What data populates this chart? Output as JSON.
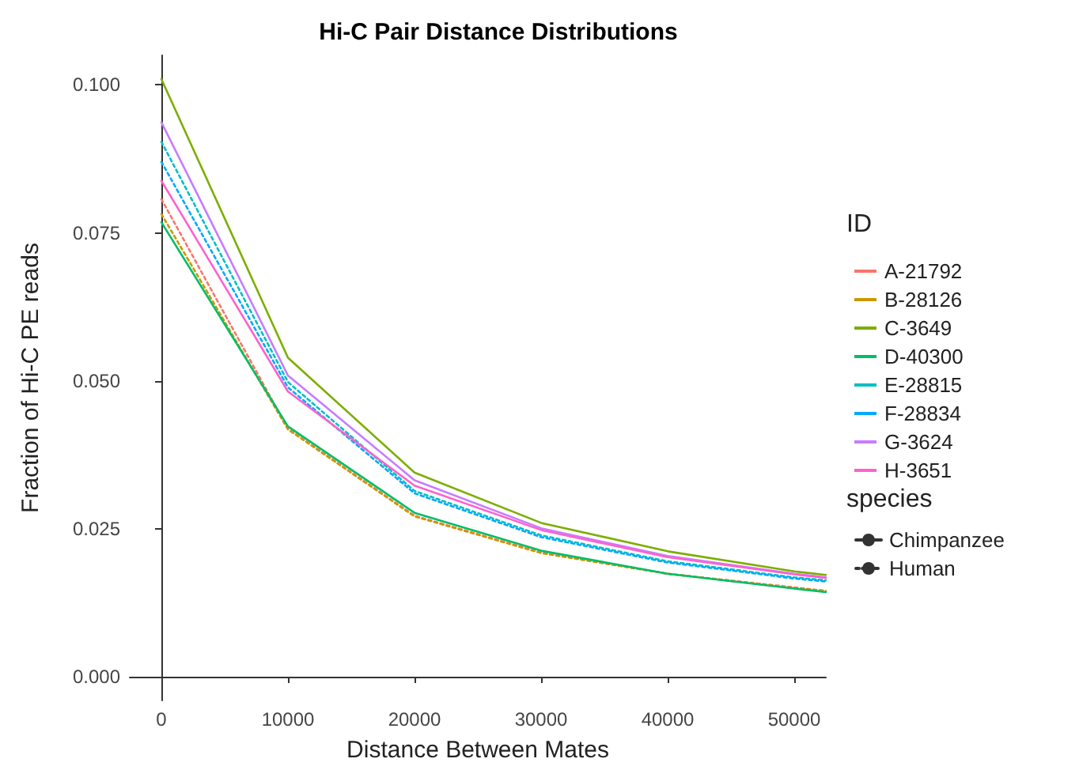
{
  "chart_data": {
    "type": "line",
    "title": "Hi-C Pair Distance Distributions",
    "xlabel": "Distance Between Mates",
    "ylabel": "Fraction of Hi-C PE reads",
    "legend_title": "ID",
    "legend": "right",
    "grid": false,
    "marker": "none",
    "x": [
      0,
      10000,
      20000,
      30000,
      40000,
      50000,
      52500
    ],
    "xlim": [
      -2500,
      52500
    ],
    "xticks": [
      0,
      10000,
      20000,
      30000,
      40000,
      50000
    ],
    "ylim": [
      -0.004,
      0.105
    ],
    "yticks": [
      {
        "value": 0,
        "label": "0.000"
      },
      {
        "value": 0.025,
        "label": "0.025"
      },
      {
        "value": 0.05,
        "label": "0.050"
      },
      {
        "value": 0.075,
        "label": "0.075"
      },
      {
        "value": 0.1,
        "label": "0.100"
      }
    ],
    "annotations": [
      "species"
    ],
    "series": [
      {
        "name": "A-21792",
        "color": "#f8766d",
        "line_style": "dotted",
        "values": [
          0.0807,
          0.0419,
          0.0272,
          0.021,
          0.0174,
          0.0151,
          0.0145
        ]
      },
      {
        "name": "B-28126",
        "color": "#cd9600",
        "line_style": "dotted",
        "values": [
          0.0782,
          0.0418,
          0.0271,
          0.0209,
          0.0174,
          0.015,
          0.0145
        ]
      },
      {
        "name": "C-3649",
        "color": "#7cae00",
        "line_style": "solid",
        "values": [
          0.101,
          0.0539,
          0.0345,
          0.026,
          0.0212,
          0.0178,
          0.0172
        ]
      },
      {
        "name": "D-40300",
        "color": "#00be67",
        "line_style": "solid",
        "values": [
          0.0768,
          0.0423,
          0.0277,
          0.0213,
          0.0174,
          0.0149,
          0.0143
        ]
      },
      {
        "name": "E-28815",
        "color": "#00bfc4",
        "line_style": "dotted",
        "values": [
          0.0904,
          0.0498,
          0.0314,
          0.0239,
          0.0195,
          0.0168,
          0.0163
        ]
      },
      {
        "name": "F-28834",
        "color": "#00a9ff",
        "line_style": "dotted",
        "values": [
          0.087,
          0.0489,
          0.031,
          0.0236,
          0.0193,
          0.0166,
          0.0161
        ]
      },
      {
        "name": "G-3624",
        "color": "#c77cff",
        "line_style": "solid",
        "values": [
          0.0937,
          0.0509,
          0.0332,
          0.0251,
          0.0204,
          0.0174,
          0.0168
        ]
      },
      {
        "name": "H-3651",
        "color": "#ff61cc",
        "line_style": "solid",
        "values": [
          0.0838,
          0.0482,
          0.0323,
          0.0248,
          0.0202,
          0.0173,
          0.0167
        ]
      },
      {
        "name": "Chimpanzee",
        "color": "#333333",
        "line_style": "solid",
        "values": [
          null,
          null,
          null,
          null,
          null,
          null,
          null
        ]
      },
      {
        "name": "Human",
        "color": "#333333",
        "line_style": "dotted",
        "values": [
          null,
          null,
          null,
          null,
          null,
          null,
          null
        ]
      }
    ]
  }
}
